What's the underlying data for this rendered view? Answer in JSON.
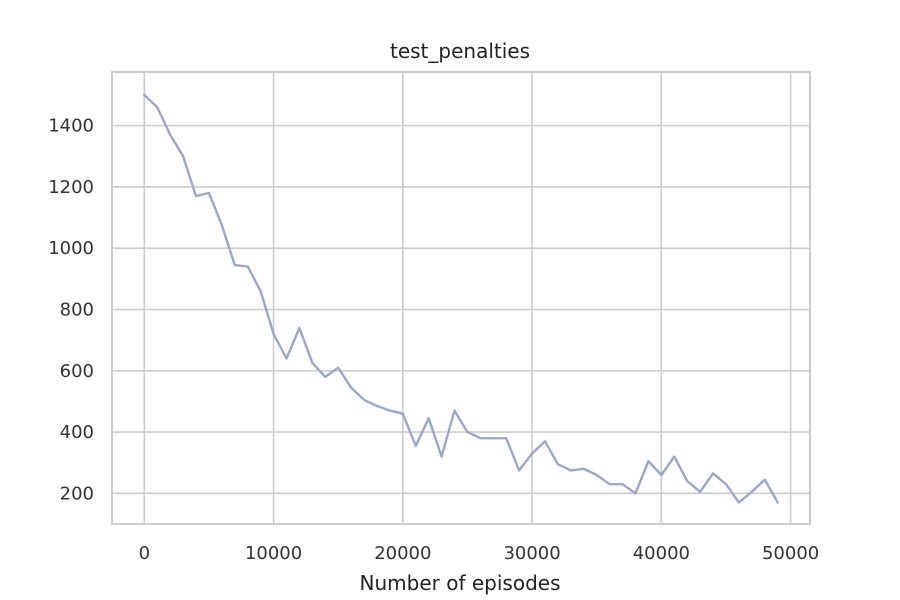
{
  "chart_data": {
    "type": "line",
    "title": "test_penalties",
    "xlabel": "Number of episodes",
    "ylabel": "",
    "xlim": [
      -2500,
      51500
    ],
    "ylim": [
      100,
      1575
    ],
    "xticks": [
      0,
      10000,
      20000,
      30000,
      40000,
      50000
    ],
    "yticks": [
      200,
      400,
      600,
      800,
      1000,
      1200,
      1400
    ],
    "grid": true,
    "line_color": "#9BA6CC",
    "series": [
      {
        "x": [
          0,
          1000,
          2000,
          3000,
          4000,
          5000,
          6000,
          7000,
          8000,
          9000,
          10000,
          11000,
          12000,
          13000,
          14000,
          15000,
          16000,
          17000,
          18000,
          19000,
          20000,
          21000,
          22000,
          23000,
          24000,
          25000,
          26000,
          27000,
          28000,
          29000,
          30000,
          31000,
          32000,
          33000,
          34000,
          35000,
          36000,
          37000,
          38000,
          39000,
          40000,
          41000,
          42000,
          43000,
          44000,
          45000,
          46000,
          47000,
          48000,
          49000
        ],
        "values": [
          1500,
          1460,
          1370,
          1300,
          1170,
          1180,
          1075,
          945,
          940,
          860,
          720,
          640,
          740,
          625,
          580,
          610,
          545,
          505,
          485,
          470,
          460,
          355,
          445,
          320,
          470,
          400,
          380,
          380,
          380,
          275,
          330,
          370,
          295,
          275,
          280,
          260,
          230,
          230,
          200,
          305,
          260,
          320,
          240,
          205,
          265,
          230,
          170,
          205,
          245,
          170
        ]
      }
    ]
  }
}
